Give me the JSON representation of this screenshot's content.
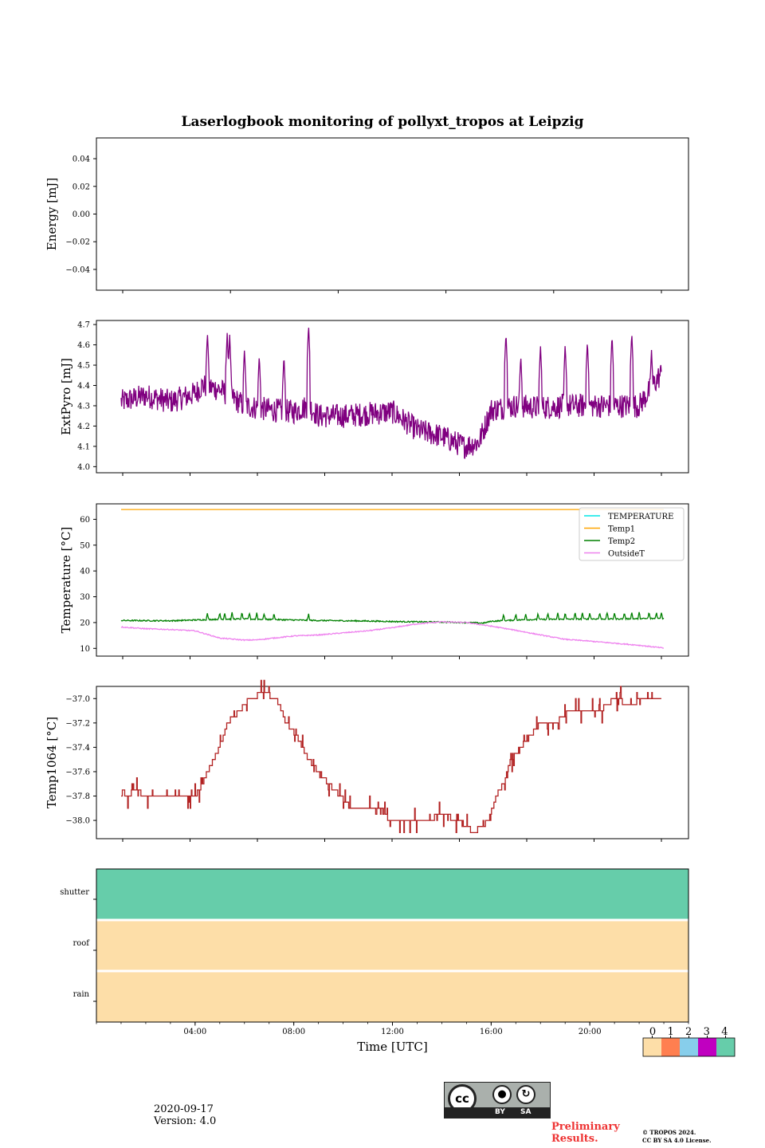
{
  "chart_data": [
    {
      "type": "line",
      "title": "Laserlogbook monitoring of pollyxt_tropos at Leipzig",
      "ylabel": "Energy [mJ]",
      "ylim": [
        -0.055,
        0.055
      ],
      "yticks": [
        0.04,
        0.02,
        0.0,
        -0.02,
        -0.04
      ],
      "ytick_labels": [
        "0.04",
        "0.02",
        "0.00",
        "−0.02",
        "−0.04"
      ],
      "series": []
    },
    {
      "type": "line",
      "ylabel": "ExtPyro [mJ]",
      "ylim": [
        3.97,
        4.72
      ],
      "yticks": [
        4.0,
        4.1,
        4.2,
        4.3,
        4.4,
        4.5,
        4.6,
        4.7
      ],
      "ytick_labels": [
        "4.0",
        "4.1",
        "4.2",
        "4.3",
        "4.4",
        "4.5",
        "4.6",
        "4.7"
      ],
      "series": [
        {
          "name": "ExtPyro",
          "color": "#800080",
          "x": [
            1.0,
            2.0,
            3.0,
            4.0,
            4.3,
            5.0,
            6.0,
            7.0,
            8.0,
            8.6,
            9.0,
            10.0,
            11.0,
            12.0,
            13.0,
            14.0,
            14.9,
            15.5,
            16.0,
            17.0,
            18.0,
            19.0,
            20.0,
            21.0,
            22.0,
            22.9
          ],
          "values": [
            4.32,
            4.35,
            4.32,
            4.36,
            4.4,
            4.38,
            4.3,
            4.28,
            4.27,
            4.3,
            4.25,
            4.25,
            4.26,
            4.27,
            4.18,
            4.15,
            4.1,
            4.12,
            4.28,
            4.3,
            4.29,
            4.3,
            4.3,
            4.3,
            4.3,
            4.46
          ],
          "peaks": [
            {
              "x": 4.5,
              "y": 4.66
            },
            {
              "x": 5.3,
              "y": 4.66
            },
            {
              "x": 5.4,
              "y": 4.65
            },
            {
              "x": 6.0,
              "y": 4.58
            },
            {
              "x": 6.6,
              "y": 4.55
            },
            {
              "x": 7.6,
              "y": 4.55
            },
            {
              "x": 8.6,
              "y": 4.7
            },
            {
              "x": 16.6,
              "y": 4.66
            },
            {
              "x": 17.2,
              "y": 4.55
            },
            {
              "x": 18.0,
              "y": 4.6
            },
            {
              "x": 19.0,
              "y": 4.6
            },
            {
              "x": 19.9,
              "y": 4.62
            },
            {
              "x": 20.9,
              "y": 4.65
            },
            {
              "x": 21.7,
              "y": 4.66
            },
            {
              "x": 22.5,
              "y": 4.58
            }
          ]
        }
      ]
    },
    {
      "type": "line",
      "ylabel": "Temperature [°C]",
      "ylim": [
        7,
        66
      ],
      "yticks": [
        10,
        20,
        30,
        40,
        50,
        60
      ],
      "ytick_labels": [
        "10",
        "20",
        "30",
        "40",
        "50",
        "60"
      ],
      "legend_position": "top-right",
      "series": [
        {
          "name": "TEMPERATURE",
          "color": "#00e5e5",
          "x": [],
          "values": []
        },
        {
          "name": "Temp1",
          "color": "#ffa500",
          "x": [
            1,
            23
          ],
          "values": [
            63.8,
            63.8
          ]
        },
        {
          "name": "Temp2",
          "color": "#008000",
          "x": [
            1,
            3,
            4,
            5,
            6,
            7,
            8,
            9,
            10,
            11,
            12,
            13,
            14,
            15,
            15.7,
            16,
            17,
            18,
            19,
            20,
            21,
            22,
            23
          ],
          "values": [
            20.8,
            20.7,
            21.0,
            21.3,
            21.4,
            21.2,
            21.0,
            20.8,
            20.7,
            20.6,
            20.4,
            20.3,
            20.2,
            20.0,
            19.8,
            20.5,
            21.0,
            21.2,
            21.3,
            21.4,
            21.4,
            21.5,
            21.6
          ],
          "spikes": [
            4.5,
            5.0,
            5.2,
            5.5,
            5.9,
            6.2,
            6.5,
            6.8,
            7.2,
            8.6,
            16.5,
            17.0,
            17.4,
            17.9,
            18.3,
            18.7,
            19.0,
            19.4,
            19.7,
            20.0,
            20.4,
            20.7,
            21.0,
            21.4,
            21.7,
            22.0,
            22.4,
            22.7,
            22.9
          ]
        },
        {
          "name": "OutsideT",
          "color": "#ee82ee",
          "x": [
            1,
            2,
            3,
            4,
            5,
            6,
            6.5,
            7,
            8,
            9,
            10,
            11,
            12,
            13,
            14,
            15,
            16,
            17,
            18,
            19,
            20,
            21,
            22,
            23
          ],
          "values": [
            18.3,
            17.6,
            17.3,
            16.8,
            14.0,
            13.2,
            13.3,
            13.8,
            14.8,
            15.2,
            16.0,
            16.8,
            18.0,
            19.5,
            20.3,
            20.0,
            18.6,
            17.0,
            15.2,
            13.5,
            12.8,
            12.0,
            11.2,
            10.1
          ]
        }
      ]
    },
    {
      "type": "line",
      "ylabel": "Temp1064 [°C]",
      "ylim": [
        -38.15,
        -36.9
      ],
      "yticks": [
        -37.0,
        -37.2,
        -37.4,
        -37.6,
        -37.8,
        -38.0
      ],
      "ytick_labels": [
        "−37.0",
        "−37.2",
        "−37.4",
        "−37.6",
        "−37.8",
        "−38.0"
      ],
      "series": [
        {
          "name": "Temp1064",
          "color": "#b22222",
          "x": [
            1.0,
            1.05,
            1.2,
            1.6,
            2.0,
            3.0,
            4.0,
            4.3,
            4.5,
            5.0,
            5.3,
            5.8,
            6.2,
            6.8,
            7.3,
            7.7,
            8.1,
            8.6,
            9.0,
            9.4,
            9.9,
            10.3,
            10.9,
            11.5,
            11.9,
            12.2,
            12.8,
            13.4,
            14.0,
            14.7,
            15.3,
            15.9,
            16.2,
            16.5,
            16.8,
            17.2,
            17.6,
            18.0,
            18.6,
            19.2,
            19.8,
            20.4,
            21.0,
            21.6,
            22.2,
            22.9
          ],
          "values": [
            -37.8,
            -37.75,
            -37.8,
            -37.75,
            -37.8,
            -37.8,
            -37.8,
            -37.7,
            -37.6,
            -37.4,
            -37.2,
            -37.1,
            -37.0,
            -36.95,
            -37.0,
            -37.2,
            -37.3,
            -37.5,
            -37.6,
            -37.7,
            -37.8,
            -37.9,
            -37.9,
            -37.9,
            -38.0,
            -38.0,
            -38.0,
            -38.0,
            -37.95,
            -38.0,
            -38.1,
            -38.0,
            -37.8,
            -37.7,
            -37.5,
            -37.4,
            -37.3,
            -37.2,
            -37.2,
            -37.1,
            -37.1,
            -37.1,
            -37.0,
            -37.05,
            -37.0,
            -37.0
          ]
        }
      ]
    },
    {
      "type": "heatmap",
      "xlabel": "Time [UTC]",
      "xlim": [
        0,
        24
      ],
      "xticks": [
        4,
        8,
        12,
        16,
        20
      ],
      "xtick_labels": [
        "04:00",
        "08:00",
        "12:00",
        "16:00",
        "20:00"
      ],
      "rows": [
        {
          "label": "shutter",
          "value": 4
        },
        {
          "label": "roof",
          "value": 0
        },
        {
          "label": "rain",
          "value": 0
        }
      ],
      "colorbar": {
        "ticks": [
          "0",
          "1",
          "2",
          "3",
          "4"
        ],
        "colors": [
          "#fddea8",
          "#ff7f50",
          "#87ceeb",
          "#c000c0",
          "#66cdaa"
        ]
      }
    }
  ],
  "footer": {
    "date": "2020-09-17",
    "version": "Version: 4.0",
    "preliminary_1": "Preliminary",
    "preliminary_2": "Results.",
    "copyright_1": "© TROPOS 2024.",
    "copyright_2": "CC BY SA 4.0 License.",
    "cc_logo": "cc",
    "cc_by": "BY",
    "cc_sa": "SA"
  }
}
